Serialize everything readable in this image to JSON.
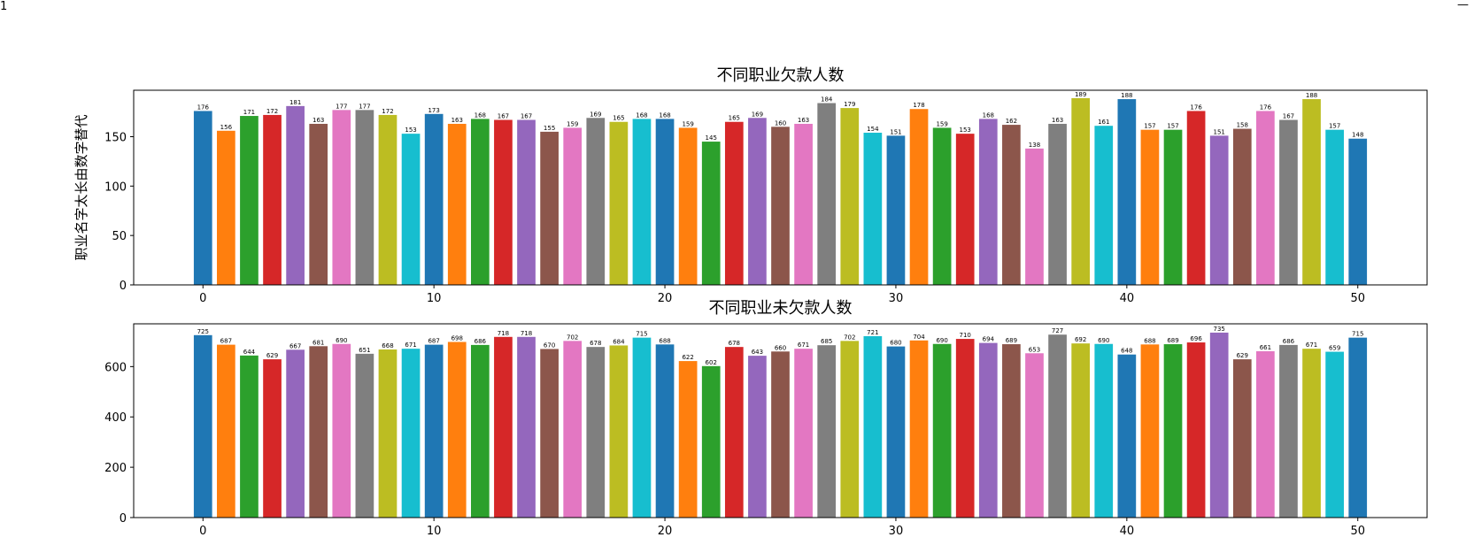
{
  "figure": {
    "corner_left": "1",
    "corner_right": "—"
  },
  "colors": [
    "#1f77b4",
    "#ff7f0e",
    "#2ca02c",
    "#d62728",
    "#9467bd",
    "#8c564b",
    "#e377c2",
    "#7f7f7f",
    "#bcbd22",
    "#17becf"
  ],
  "chart_data": [
    {
      "type": "bar",
      "title": "不同职业欠款人数",
      "ylabel": "职业名字太长由数字替代",
      "xlabel": "",
      "x": [
        0,
        1,
        2,
        3,
        4,
        5,
        6,
        7,
        8,
        9,
        10,
        11,
        12,
        13,
        14,
        15,
        16,
        17,
        18,
        19,
        20,
        21,
        22,
        23,
        24,
        25,
        26,
        27,
        28,
        29,
        30,
        31,
        32,
        33,
        34,
        35,
        36,
        37,
        38,
        39,
        40,
        41,
        42,
        43,
        44,
        45,
        46,
        47,
        48,
        49,
        50
      ],
      "values": [
        176,
        156,
        171,
        172,
        181,
        163,
        177,
        177,
        172,
        153,
        173,
        163,
        168,
        167,
        167,
        155,
        159,
        169,
        165,
        168,
        168,
        159,
        145,
        165,
        169,
        160,
        163,
        184,
        179,
        154,
        151,
        178,
        159,
        153,
        168,
        162,
        138,
        163,
        189,
        161,
        188,
        157,
        157,
        176,
        151,
        158,
        176,
        167,
        188,
        157,
        148
      ],
      "xticks": [
        0,
        10,
        20,
        30,
        40,
        50
      ],
      "yticks": [
        0,
        50,
        100,
        150
      ],
      "ylim": [
        0,
        197
      ],
      "xlim": [
        -3,
        53
      ]
    },
    {
      "type": "bar",
      "title": "不同职业未欠款人数",
      "ylabel": "",
      "xlabel": "",
      "x": [
        0,
        1,
        2,
        3,
        4,
        5,
        6,
        7,
        8,
        9,
        10,
        11,
        12,
        13,
        14,
        15,
        16,
        17,
        18,
        19,
        20,
        21,
        22,
        23,
        24,
        25,
        26,
        27,
        28,
        29,
        30,
        31,
        32,
        33,
        34,
        35,
        36,
        37,
        38,
        39,
        40,
        41,
        42,
        43,
        44,
        45,
        46,
        47,
        48,
        49,
        50
      ],
      "values": [
        725,
        687,
        644,
        629,
        667,
        681,
        690,
        651,
        668,
        671,
        687,
        698,
        686,
        718,
        718,
        670,
        702,
        678,
        684,
        715,
        688,
        622,
        602,
        678,
        643,
        660,
        671,
        685,
        702,
        721,
        680,
        704,
        690,
        710,
        694,
        689,
        653,
        727,
        692,
        690,
        648,
        688,
        689,
        696,
        735,
        629,
        661,
        686,
        671,
        659,
        715
      ],
      "xticks": [
        0,
        10,
        20,
        30,
        40,
        50
      ],
      "yticks": [
        0,
        200,
        400,
        600
      ],
      "ylim": [
        0,
        770
      ],
      "xlim": [
        -3,
        53
      ]
    }
  ]
}
